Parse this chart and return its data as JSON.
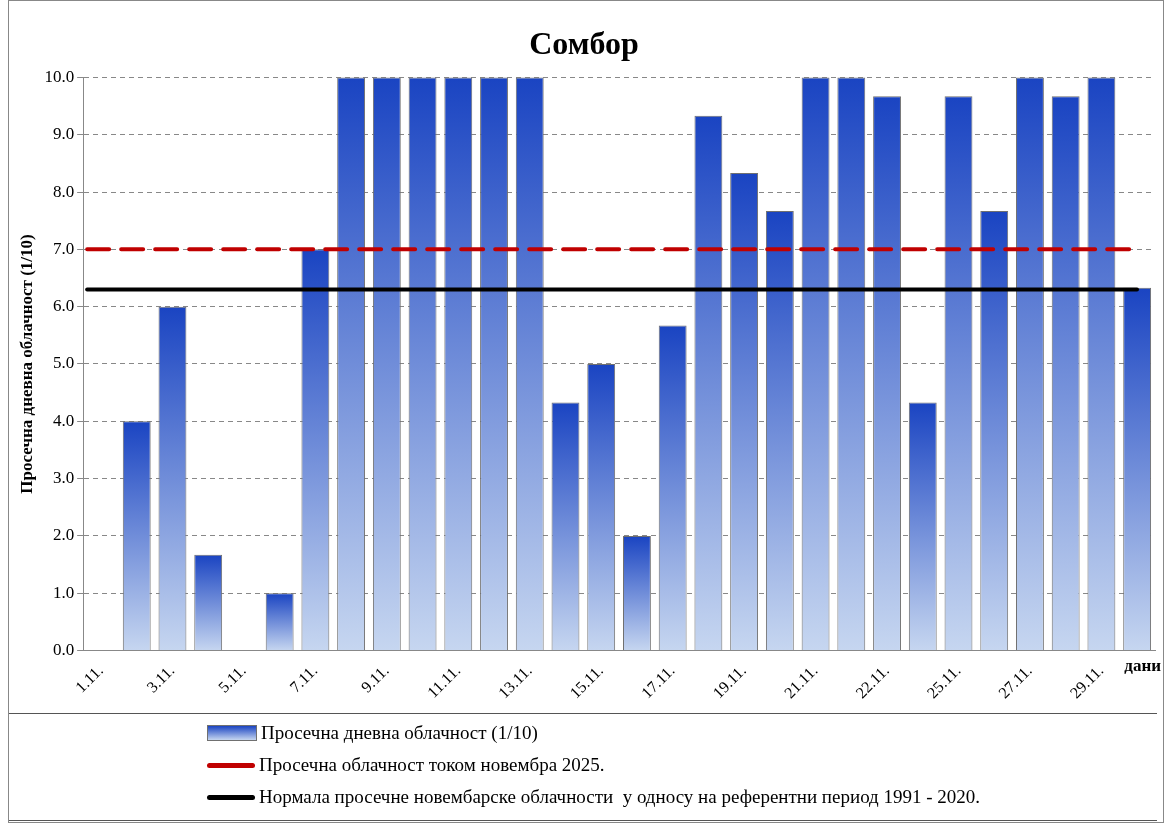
{
  "chart_data": {
    "type": "bar",
    "title": "Сомбор",
    "xlabel": "дани",
    "ylabel": "Просечна дневна облачност (1/10)",
    "categories": [
      "1.11.",
      null,
      "3.11.",
      null,
      "5.11.",
      null,
      "7.11.",
      null,
      "9.11.",
      null,
      "11.11.",
      null,
      "13.11.",
      null,
      "15.11.",
      null,
      "17.11.",
      null,
      "19.11.",
      null,
      "21.11.",
      null,
      "22.11.",
      null,
      "25.11.",
      null,
      "27.11.",
      null,
      "29.11.",
      null
    ],
    "series": [
      {
        "name": "Просечна дневна облачност (1/10)",
        "color": "#1a44c2",
        "values": [
          0,
          4.0,
          6.0,
          1.67,
          0,
          1.0,
          7.0,
          10.0,
          10.0,
          10.0,
          10.0,
          10.0,
          10.0,
          4.33,
          5.0,
          2.0,
          5.67,
          9.33,
          8.33,
          7.67,
          10.0,
          10.0,
          9.67,
          4.33,
          9.67,
          7.67,
          10.0,
          9.67,
          10.0,
          6.33
        ]
      }
    ],
    "ref_lines": [
      {
        "axis": "y",
        "value": 7.0,
        "label": "Просечна облачност током новембра 2025.",
        "color": "#c00000",
        "line_style": "dashed"
      },
      {
        "axis": "y",
        "value": 6.3,
        "label": "Нормала просечне новембарске облачности  у односу на референтни период 1991 - 2020.",
        "color": "#000000",
        "line_style": "solid"
      }
    ],
    "ylim": [
      0,
      10
    ],
    "yticks": [
      {
        "value": 0,
        "label": "0.0"
      },
      {
        "value": 1,
        "label": "1.0"
      },
      {
        "value": 2,
        "label": "2.0"
      },
      {
        "value": 3,
        "label": "3.0"
      },
      {
        "value": 4,
        "label": "4.0"
      },
      {
        "value": 5,
        "label": "5.0"
      },
      {
        "value": 6,
        "label": "6.0"
      },
      {
        "value": 7,
        "label": "7.0"
      },
      {
        "value": 8,
        "label": "8.0"
      },
      {
        "value": 9,
        "label": "9.0"
      },
      {
        "value": 10,
        "label": "10.0"
      }
    ],
    "grid": "y",
    "legend": "bottom"
  }
}
